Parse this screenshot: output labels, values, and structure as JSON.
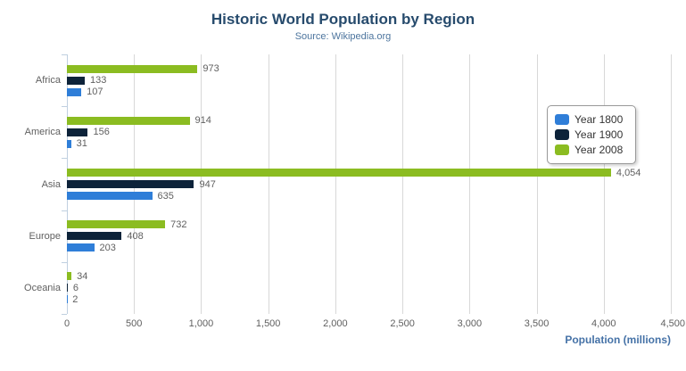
{
  "header": {
    "title": "Historic World Population by Region",
    "subtitle": "Source: Wikipedia.org"
  },
  "export_menu": {
    "icon": "hamburger-menu-icon"
  },
  "chart_data": {
    "type": "bar",
    "orientation": "horizontal",
    "title": "Historic World Population by Region",
    "subtitle": "Source: Wikipedia.org",
    "categories": [
      "Africa",
      "America",
      "Asia",
      "Europe",
      "Oceania"
    ],
    "series": [
      {
        "name": "Year 1800",
        "color": "#2f7ed8",
        "values": [
          107,
          31,
          635,
          203,
          2
        ],
        "labels": [
          "107",
          "31",
          "635",
          "203",
          "2"
        ]
      },
      {
        "name": "Year 1900",
        "color": "#0d233a",
        "values": [
          133,
          156,
          947,
          408,
          6
        ],
        "labels": [
          "133",
          "156",
          "947",
          "408",
          "6"
        ]
      },
      {
        "name": "Year 2008",
        "color": "#8bbc21",
        "values": [
          973,
          914,
          4054,
          732,
          34
        ],
        "labels": [
          "973",
          "914",
          "4,054",
          "732",
          "34"
        ]
      }
    ],
    "bar_order_top_to_bottom": [
      "Year 2008",
      "Year 1900",
      "Year 1800"
    ],
    "xlabel": "Population (millions)",
    "ylabel": "",
    "xlim": [
      0,
      4500
    ],
    "x_tick_values": [
      0,
      500,
      1000,
      1500,
      2000,
      2500,
      3000,
      3500,
      4000,
      4500
    ],
    "x_tick_labels": [
      "0",
      "500",
      "1,000",
      "1,500",
      "2,000",
      "2,500",
      "3,000",
      "3,500",
      "4,000",
      "4,500"
    ],
    "grid": true,
    "legend_position": "right",
    "data_label_color": "#606060",
    "colors": {
      "title": "#274b6d",
      "subtitle": "#4d759e",
      "axis_title": "#4572a7",
      "tick_label": "#606060",
      "category_label": "#606060",
      "gridline": "#d8d8d8",
      "axis_line": "#c0d0e0",
      "legend_border": "#999999",
      "legend_text": "#333333",
      "menu_icon": "#666666"
    }
  }
}
